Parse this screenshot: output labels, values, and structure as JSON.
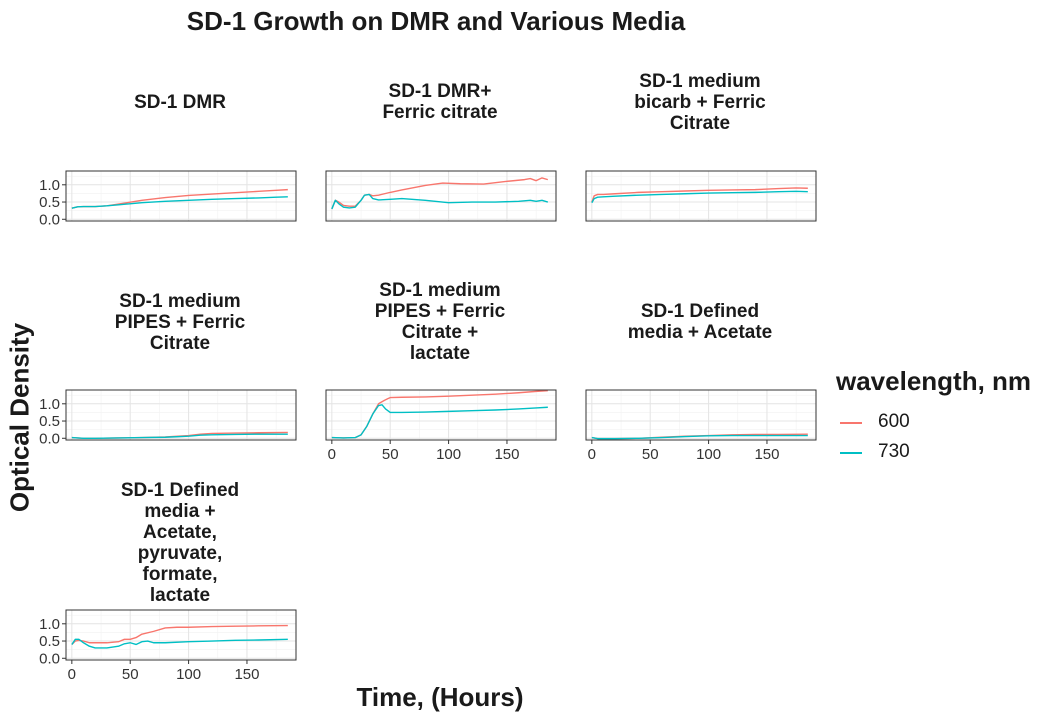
{
  "chart_data": {
    "type": "line",
    "title": "SD-1 Growth on DMR and Various Media",
    "xlabel": "Time, (Hours)",
    "ylabel": "Optical Density",
    "xlim": [
      -5,
      192
    ],
    "ylim": [
      -0.05,
      1.4
    ],
    "x_ticks": [
      "0",
      "50",
      "100",
      "150"
    ],
    "y_ticks": [
      "0.0",
      "0.5",
      "1.0"
    ],
    "grid": true,
    "legend": {
      "title": "wavelength, nm",
      "position": "right",
      "entries": [
        {
          "label": "600",
          "color": "#F8766D"
        },
        {
          "label": "730",
          "color": "#00BFC4"
        }
      ]
    },
    "panels": [
      {
        "title": "SD-1 DMR",
        "series": [
          {
            "name": "600",
            "x": [
              0,
              5,
              10,
              20,
              30,
              40,
              60,
              80,
              100,
              120,
              140,
              160,
              175,
              185
            ],
            "y": [
              0.32,
              0.36,
              0.37,
              0.37,
              0.39,
              0.44,
              0.55,
              0.63,
              0.69,
              0.73,
              0.77,
              0.81,
              0.84,
              0.86
            ]
          },
          {
            "name": "730",
            "x": [
              0,
              5,
              10,
              20,
              30,
              40,
              60,
              80,
              100,
              120,
              140,
              160,
              175,
              185
            ],
            "y": [
              0.32,
              0.36,
              0.37,
              0.37,
              0.39,
              0.42,
              0.48,
              0.52,
              0.55,
              0.58,
              0.6,
              0.62,
              0.64,
              0.65
            ]
          }
        ]
      },
      {
        "title": "SD-1 DMR+\nFerric citrate",
        "series": [
          {
            "name": "600",
            "x": [
              0,
              3,
              6,
              10,
              15,
              20,
              25,
              28,
              32,
              35,
              40,
              50,
              60,
              80,
              95,
              110,
              130,
              150,
              165,
              170,
              175,
              180,
              185
            ],
            "y": [
              0.3,
              0.55,
              0.5,
              0.4,
              0.38,
              0.38,
              0.55,
              0.7,
              0.72,
              0.68,
              0.7,
              0.78,
              0.85,
              0.98,
              1.05,
              1.03,
              1.02,
              1.1,
              1.15,
              1.18,
              1.12,
              1.2,
              1.15
            ]
          },
          {
            "name": "730",
            "x": [
              0,
              3,
              6,
              10,
              15,
              20,
              25,
              28,
              32,
              35,
              40,
              50,
              60,
              80,
              100,
              120,
              140,
              160,
              170,
              175,
              180,
              185
            ],
            "y": [
              0.3,
              0.55,
              0.45,
              0.35,
              0.33,
              0.35,
              0.55,
              0.7,
              0.72,
              0.6,
              0.56,
              0.58,
              0.6,
              0.55,
              0.48,
              0.5,
              0.5,
              0.52,
              0.55,
              0.52,
              0.55,
              0.5
            ]
          }
        ]
      },
      {
        "title": "SD-1 medium\nbicarb + Ferric\nCitrate",
        "series": [
          {
            "name": "600",
            "x": [
              0,
              2,
              5,
              10,
              20,
              40,
              60,
              80,
              100,
              120,
              140,
              160,
              175,
              185
            ],
            "y": [
              0.5,
              0.68,
              0.72,
              0.72,
              0.74,
              0.78,
              0.8,
              0.82,
              0.84,
              0.85,
              0.86,
              0.89,
              0.91,
              0.9
            ]
          },
          {
            "name": "730",
            "x": [
              0,
              2,
              5,
              10,
              20,
              40,
              60,
              80,
              100,
              120,
              140,
              160,
              175,
              185
            ],
            "y": [
              0.48,
              0.6,
              0.64,
              0.65,
              0.67,
              0.7,
              0.72,
              0.74,
              0.76,
              0.77,
              0.78,
              0.8,
              0.81,
              0.8
            ]
          }
        ]
      },
      {
        "title": "SD-1 medium\nPIPES + Ferric\nCitrate",
        "series": [
          {
            "name": "600",
            "x": [
              0,
              10,
              20,
              40,
              60,
              80,
              100,
              110,
              120,
              140,
              160,
              185
            ],
            "y": [
              0.02,
              0.0,
              0.0,
              0.01,
              0.02,
              0.04,
              0.08,
              0.12,
              0.14,
              0.15,
              0.16,
              0.17
            ]
          },
          {
            "name": "730",
            "x": [
              0,
              10,
              20,
              40,
              60,
              80,
              100,
              110,
              120,
              140,
              160,
              185
            ],
            "y": [
              0.02,
              0.0,
              0.0,
              0.01,
              0.02,
              0.03,
              0.06,
              0.09,
              0.1,
              0.11,
              0.12,
              0.12
            ]
          }
        ]
      },
      {
        "title": "SD-1 medium\nPIPES + Ferric\nCitrate +\nlactate",
        "series": [
          {
            "name": "600",
            "x": [
              0,
              10,
              20,
              25,
              30,
              35,
              40,
              45,
              48,
              50,
              60,
              80,
              100,
              120,
              140,
              160,
              175,
              185
            ],
            "y": [
              0.02,
              0.01,
              0.02,
              0.1,
              0.35,
              0.7,
              1.0,
              1.1,
              1.15,
              1.18,
              1.19,
              1.2,
              1.22,
              1.25,
              1.28,
              1.32,
              1.36,
              1.38
            ]
          },
          {
            "name": "730",
            "x": [
              0,
              10,
              20,
              25,
              30,
              35,
              40,
              43,
              46,
              50,
              60,
              80,
              100,
              120,
              140,
              160,
              175,
              185
            ],
            "y": [
              0.02,
              0.01,
              0.02,
              0.1,
              0.35,
              0.7,
              0.95,
              0.97,
              0.85,
              0.75,
              0.75,
              0.76,
              0.78,
              0.8,
              0.82,
              0.85,
              0.88,
              0.9
            ]
          }
        ]
      },
      {
        "title": "SD-1 Defined\nmedia + Acetate",
        "series": [
          {
            "name": "600",
            "x": [
              0,
              5,
              20,
              40,
              60,
              80,
              100,
              120,
              140,
              160,
              185
            ],
            "y": [
              0.02,
              -0.01,
              -0.01,
              0.0,
              0.03,
              0.06,
              0.08,
              0.1,
              0.11,
              0.11,
              0.12
            ]
          },
          {
            "name": "730",
            "x": [
              0,
              5,
              20,
              40,
              60,
              80,
              100,
              120,
              140,
              160,
              185
            ],
            "y": [
              0.02,
              -0.01,
              -0.01,
              0.0,
              0.02,
              0.05,
              0.07,
              0.08,
              0.08,
              0.08,
              0.08
            ]
          }
        ]
      },
      {
        "title": "SD-1 Defined\nmedia +\nAcetate,\npyruvate,\nformate,\nlactate",
        "series": [
          {
            "name": "600",
            "x": [
              0,
              3,
              6,
              10,
              15,
              20,
              30,
              40,
              45,
              50,
              55,
              60,
              70,
              80,
              90,
              100,
              120,
              140,
              160,
              185
            ],
            "y": [
              0.4,
              0.5,
              0.52,
              0.5,
              0.45,
              0.45,
              0.45,
              0.48,
              0.55,
              0.55,
              0.6,
              0.7,
              0.78,
              0.88,
              0.9,
              0.9,
              0.92,
              0.93,
              0.94,
              0.95
            ]
          },
          {
            "name": "730",
            "x": [
              0,
              3,
              6,
              10,
              15,
              20,
              30,
              40,
              45,
              50,
              55,
              60,
              65,
              70,
              80,
              100,
              120,
              140,
              160,
              185
            ],
            "y": [
              0.4,
              0.55,
              0.55,
              0.45,
              0.35,
              0.3,
              0.3,
              0.35,
              0.42,
              0.45,
              0.4,
              0.48,
              0.5,
              0.45,
              0.45,
              0.48,
              0.5,
              0.52,
              0.53,
              0.55
            ]
          }
        ]
      }
    ]
  }
}
